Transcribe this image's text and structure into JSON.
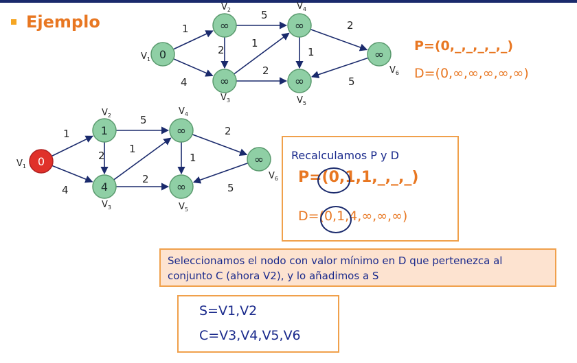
{
  "title": "Ejemplo",
  "top_graph": {
    "nodes": [
      {
        "id": "v1",
        "label": "V",
        "sub": "1",
        "value": "0"
      },
      {
        "id": "v2",
        "label": "V",
        "sub": "2",
        "value": "∞"
      },
      {
        "id": "v3",
        "label": "V",
        "sub": "3",
        "value": "∞"
      },
      {
        "id": "v4",
        "label": "V",
        "sub": "4",
        "value": "∞"
      },
      {
        "id": "v5",
        "label": "V",
        "sub": "5",
        "value": "∞"
      },
      {
        "id": "v6",
        "label": "V",
        "sub": "6",
        "value": "∞"
      }
    ],
    "edges": [
      {
        "from": "v1",
        "to": "v2",
        "weight": "1"
      },
      {
        "from": "v1",
        "to": "v3",
        "weight": "4"
      },
      {
        "from": "v2",
        "to": "v4",
        "weight": "5"
      },
      {
        "from": "v2",
        "to": "v3",
        "weight": "2"
      },
      {
        "from": "v3",
        "to": "v4",
        "weight": "1"
      },
      {
        "from": "v3",
        "to": "v5",
        "weight": "2"
      },
      {
        "from": "v4",
        "to": "v5",
        "weight": "1"
      },
      {
        "from": "v4",
        "to": "v6",
        "weight": "2"
      },
      {
        "from": "v6",
        "to": "v5",
        "weight": "5"
      }
    ]
  },
  "bottom_graph": {
    "nodes": [
      {
        "id": "v1",
        "label": "V",
        "sub": "1",
        "value": "0"
      },
      {
        "id": "v2",
        "label": "V",
        "sub": "2",
        "value": "1"
      },
      {
        "id": "v3",
        "label": "V",
        "sub": "3",
        "value": "4"
      },
      {
        "id": "v4",
        "label": "V",
        "sub": "4",
        "value": "∞"
      },
      {
        "id": "v5",
        "label": "V",
        "sub": "5",
        "value": "∞"
      },
      {
        "id": "v6",
        "label": "V",
        "sub": "6",
        "value": "∞"
      }
    ]
  },
  "top_p": "P=(0,_,_,_,_,_)",
  "top_d": "D=(0,∞,∞,∞,∞,∞)",
  "recalc": {
    "heading": "Recalculamos P y D",
    "p": "P=(0,1,1,_,_,_)",
    "d": "D=(0,1,4,∞,∞,∞)"
  },
  "select_text": "Seleccionamos el nodo con valor mínimo en D que pertenezca al conjunto C (ahora V2), y lo añadimos a S",
  "sets": {
    "s": "S=V1,V2",
    "c": "C=V3,V4,V5,V6"
  },
  "colors": {
    "node_fill": "#8fcfa5",
    "node_stroke": "#5a9a6e",
    "selected_fill": "#e0312a",
    "edge": "#1a2a6c",
    "accent": "#e87722"
  }
}
